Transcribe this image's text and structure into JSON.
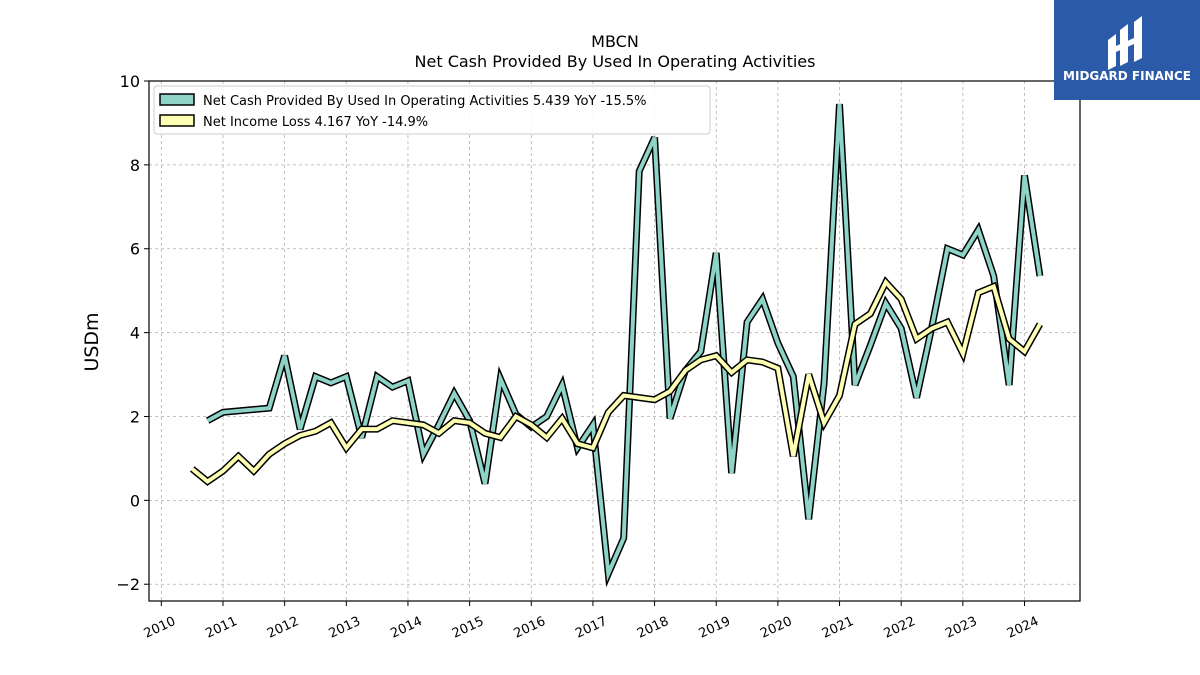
{
  "chart_data": {
    "type": "line",
    "title": "MBCN",
    "subtitle": "Net Cash Provided By Used In Operating Activities",
    "xlabel": "",
    "ylabel": "USDm",
    "ylim": [
      -2.4,
      10
    ],
    "xlim": [
      2009.8,
      2024.9
    ],
    "y_ticks": [
      -2,
      0,
      2,
      4,
      6,
      8,
      10
    ],
    "y_tick_labels": [
      "−2",
      "0",
      "2",
      "4",
      "6",
      "8",
      "10"
    ],
    "x_ticks": [
      2010,
      2011,
      2012,
      2013,
      2014,
      2015,
      2016,
      2017,
      2018,
      2019,
      2020,
      2021,
      2022,
      2023,
      2024
    ],
    "x_tick_labels": [
      "2010",
      "2011",
      "2012",
      "2013",
      "2014",
      "2015",
      "2016",
      "2017",
      "2018",
      "2019",
      "2020",
      "2021",
      "2022",
      "2023",
      "2024"
    ],
    "grid": true,
    "legend_position": "top-left",
    "series": [
      {
        "name": "Net Cash Provided By Used In Operating Activities",
        "legend_label": "Net Cash Provided By Used In Operating Activities  5.439 YoY -15.5%",
        "color": "#8dd3c7",
        "points": [
          [
            2010.75,
            1.9
          ],
          [
            2011.0,
            2.1
          ],
          [
            2011.75,
            2.2
          ],
          [
            2012.0,
            3.45
          ],
          [
            2012.25,
            1.7
          ],
          [
            2012.5,
            2.95
          ],
          [
            2012.75,
            2.8
          ],
          [
            2013.0,
            2.95
          ],
          [
            2013.25,
            1.5
          ],
          [
            2013.5,
            2.95
          ],
          [
            2013.75,
            2.7
          ],
          [
            2014.0,
            2.85
          ],
          [
            2014.25,
            1.1
          ],
          [
            2014.5,
            1.8
          ],
          [
            2014.75,
            2.55
          ],
          [
            2015.0,
            1.9
          ],
          [
            2015.25,
            0.4
          ],
          [
            2015.5,
            2.9
          ],
          [
            2015.75,
            2.05
          ],
          [
            2016.0,
            1.75
          ],
          [
            2016.25,
            2.0
          ],
          [
            2016.5,
            2.75
          ],
          [
            2016.75,
            1.25
          ],
          [
            2017.0,
            1.8
          ],
          [
            2017.25,
            -1.75
          ],
          [
            2017.5,
            -0.9
          ],
          [
            2017.75,
            7.85
          ],
          [
            2018.0,
            8.65
          ],
          [
            2018.25,
            1.95
          ],
          [
            2018.5,
            3.1
          ],
          [
            2018.75,
            3.55
          ],
          [
            2019.0,
            5.9
          ],
          [
            2019.25,
            0.65
          ],
          [
            2019.5,
            4.25
          ],
          [
            2019.75,
            4.8
          ],
          [
            2020.0,
            3.75
          ],
          [
            2020.25,
            2.95
          ],
          [
            2020.5,
            -0.45
          ],
          [
            2020.75,
            2.8
          ],
          [
            2021.0,
            9.45
          ],
          [
            2021.25,
            2.75
          ],
          [
            2021.5,
            3.7
          ],
          [
            2021.75,
            4.7
          ],
          [
            2022.0,
            4.1
          ],
          [
            2022.25,
            2.45
          ],
          [
            2022.5,
            4.15
          ],
          [
            2022.75,
            6.0
          ],
          [
            2023.0,
            5.85
          ],
          [
            2023.25,
            6.45
          ],
          [
            2023.5,
            5.35
          ],
          [
            2023.75,
            2.75
          ],
          [
            2024.0,
            7.75
          ],
          [
            2024.25,
            5.35
          ]
        ]
      },
      {
        "name": "Net Income Loss",
        "legend_label": "Net Income Loss  4.167 YoY -14.9%",
        "color": "#ffffb3",
        "points": [
          [
            2010.5,
            0.75
          ],
          [
            2010.75,
            0.45
          ],
          [
            2011.0,
            0.7
          ],
          [
            2011.25,
            1.05
          ],
          [
            2011.5,
            0.7
          ],
          [
            2011.75,
            1.1
          ],
          [
            2012.0,
            1.35
          ],
          [
            2012.25,
            1.55
          ],
          [
            2012.5,
            1.65
          ],
          [
            2012.75,
            1.85
          ],
          [
            2013.0,
            1.25
          ],
          [
            2013.25,
            1.7
          ],
          [
            2013.5,
            1.7
          ],
          [
            2013.75,
            1.9
          ],
          [
            2014.0,
            1.85
          ],
          [
            2014.25,
            1.8
          ],
          [
            2014.5,
            1.6
          ],
          [
            2014.75,
            1.9
          ],
          [
            2015.0,
            1.85
          ],
          [
            2015.25,
            1.6
          ],
          [
            2015.5,
            1.5
          ],
          [
            2015.75,
            2.0
          ],
          [
            2016.0,
            1.8
          ],
          [
            2016.25,
            1.5
          ],
          [
            2016.5,
            1.95
          ],
          [
            2016.75,
            1.35
          ],
          [
            2017.0,
            1.25
          ],
          [
            2017.25,
            2.1
          ],
          [
            2017.5,
            2.5
          ],
          [
            2017.75,
            2.45
          ],
          [
            2018.0,
            2.4
          ],
          [
            2018.25,
            2.6
          ],
          [
            2018.5,
            3.1
          ],
          [
            2018.75,
            3.35
          ],
          [
            2019.0,
            3.45
          ],
          [
            2019.25,
            3.05
          ],
          [
            2019.5,
            3.35
          ],
          [
            2019.75,
            3.3
          ],
          [
            2020.0,
            3.15
          ],
          [
            2020.25,
            1.05
          ],
          [
            2020.5,
            3.0
          ],
          [
            2020.75,
            1.85
          ],
          [
            2021.0,
            2.5
          ],
          [
            2021.25,
            4.2
          ],
          [
            2021.5,
            4.45
          ],
          [
            2021.75,
            5.2
          ],
          [
            2022.0,
            4.8
          ],
          [
            2022.25,
            3.85
          ],
          [
            2022.5,
            4.1
          ],
          [
            2022.75,
            4.25
          ],
          [
            2023.0,
            3.5
          ],
          [
            2023.25,
            4.95
          ],
          [
            2023.5,
            5.1
          ],
          [
            2023.75,
            3.85
          ],
          [
            2024.0,
            3.55
          ],
          [
            2024.25,
            4.2
          ]
        ]
      }
    ]
  },
  "logo": {
    "text": "MIDGARD FINANCE",
    "background": "#2b5aa8"
  }
}
